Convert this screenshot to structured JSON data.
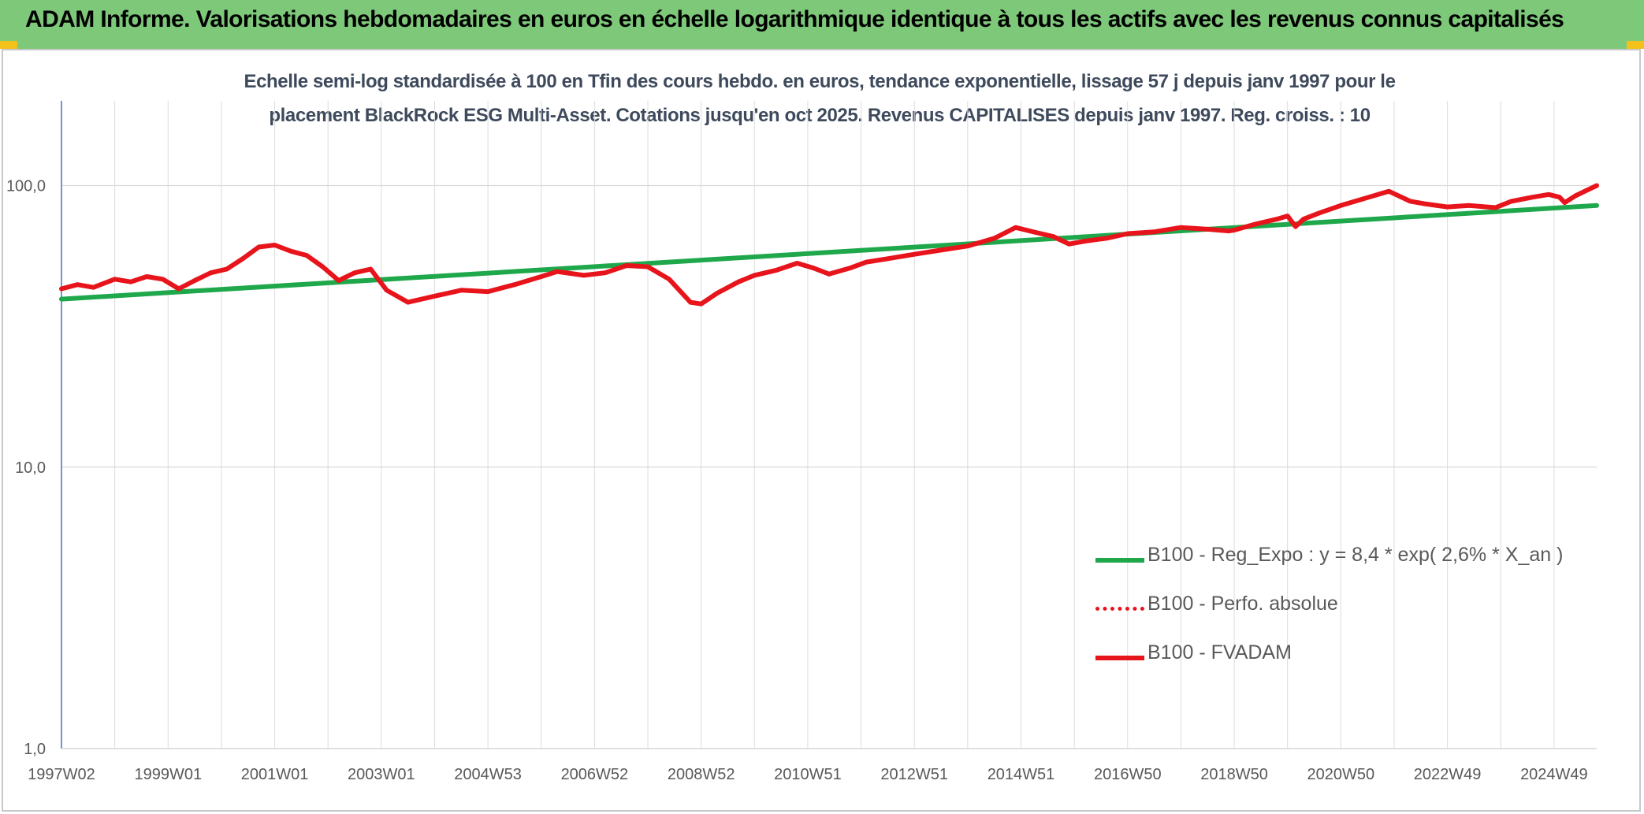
{
  "header": {
    "title": "ADAM Informe. Valorisations hebdomadaires en euros en échelle logarithmique identique à tous les actifs avec les revenus connus capitalisés"
  },
  "chart_data": {
    "type": "line",
    "title_line1": "Echelle semi-log standardisée à 100 en Tfin des cours hebdo. en euros, tendance exponentielle, lissage 57 j depuis janv 1997 pour le",
    "title_line2": "placement BlackRock ESG Multi-Asset. Cotations jusqu'en oct 2025. Revenus CAPITALISES depuis janv 1997. Reg. croiss. : 10",
    "y_scale": "log",
    "ylim": [
      1,
      200
    ],
    "y_ticks": [
      1,
      10,
      100
    ],
    "y_tick_labels": [
      "1,0",
      "10,0",
      "100,0"
    ],
    "x_range": [
      1997.0,
      2025.8
    ],
    "x_ticks": [
      1997.0,
      1999.0,
      2001.0,
      2003.0,
      2005.0,
      2007.0,
      2009.0,
      2011.0,
      2013.0,
      2015.0,
      2017.0,
      2019.0,
      2021.0,
      2023.0,
      2025.0
    ],
    "x_tick_labels": [
      "1997W02",
      "1999W01",
      "2001W01",
      "2003W01",
      "2004W53",
      "2006W52",
      "2008W52",
      "2010W51",
      "2012W51",
      "2014W51",
      "2016W50",
      "2018W50",
      "2020W50",
      "2022W49",
      "2024W49"
    ],
    "grid": true,
    "legend_position": "bottom-right",
    "series": [
      {
        "name": "B100 - Reg_Expo : y = 8,4 * exp( 2,6% * X_an )",
        "color": "#1ea84b",
        "style": "solid",
        "x": [
          1997.0,
          2025.8
        ],
        "y": [
          39.5,
          85.0
        ]
      },
      {
        "name": "B100 - Perfo. absolue",
        "color": "#e8141b",
        "style": "dotted",
        "x": [],
        "y": []
      },
      {
        "name": "B100 - FVADAM",
        "color": "#e8141b",
        "style": "solid",
        "x": [
          1997.0,
          1997.3,
          1997.6,
          1998.0,
          1998.3,
          1998.6,
          1998.9,
          1999.2,
          1999.5,
          1999.8,
          2000.1,
          2000.4,
          2000.7,
          2001.0,
          2001.3,
          2001.6,
          2001.9,
          2002.2,
          2002.5,
          2002.8,
          2003.1,
          2003.5,
          2004.0,
          2004.5,
          2005.0,
          2005.5,
          2006.0,
          2006.3,
          2006.8,
          2007.2,
          2007.6,
          2008.0,
          2008.4,
          2008.8,
          2009.0,
          2009.3,
          2009.7,
          2010.0,
          2010.4,
          2010.8,
          2011.1,
          2011.4,
          2011.8,
          2012.1,
          2012.5,
          2013.0,
          2013.5,
          2014.0,
          2014.5,
          2014.9,
          2015.3,
          2015.6,
          2015.9,
          2016.2,
          2016.6,
          2017.0,
          2017.5,
          2018.0,
          2018.5,
          2018.9,
          2019.0,
          2019.4,
          2019.8,
          2020.0,
          2020.15,
          2020.3,
          2020.6,
          2021.0,
          2021.4,
          2021.9,
          2022.3,
          2022.6,
          2023.0,
          2023.4,
          2023.9,
          2024.2,
          2024.6,
          2024.9,
          2025.1,
          2025.2,
          2025.4,
          2025.6,
          2025.8
        ],
        "y": [
          43.0,
          44.5,
          43.5,
          46.5,
          45.5,
          47.5,
          46.5,
          43.0,
          46.0,
          49.0,
          50.5,
          55.0,
          60.5,
          61.5,
          58.5,
          56.5,
          51.5,
          46.0,
          49.0,
          50.5,
          42.5,
          38.5,
          40.5,
          42.5,
          42.0,
          44.5,
          47.5,
          49.5,
          48.0,
          49.0,
          52.0,
          51.5,
          46.5,
          38.5,
          38.0,
          41.5,
          45.5,
          48.0,
          50.0,
          53.0,
          51.0,
          48.5,
          51.0,
          53.5,
          55.0,
          57.0,
          59.0,
          61.0,
          65.0,
          71.0,
          68.0,
          66.0,
          62.0,
          63.5,
          65.0,
          67.5,
          68.5,
          71.0,
          70.0,
          69.0,
          69.5,
          73.0,
          76.0,
          78.0,
          71.5,
          76.0,
          80.0,
          85.0,
          89.5,
          95.5,
          88.0,
          86.0,
          84.0,
          85.0,
          83.5,
          88.0,
          91.0,
          93.0,
          91.0,
          87.0,
          92.0,
          96.0,
          100.0
        ]
      }
    ]
  }
}
